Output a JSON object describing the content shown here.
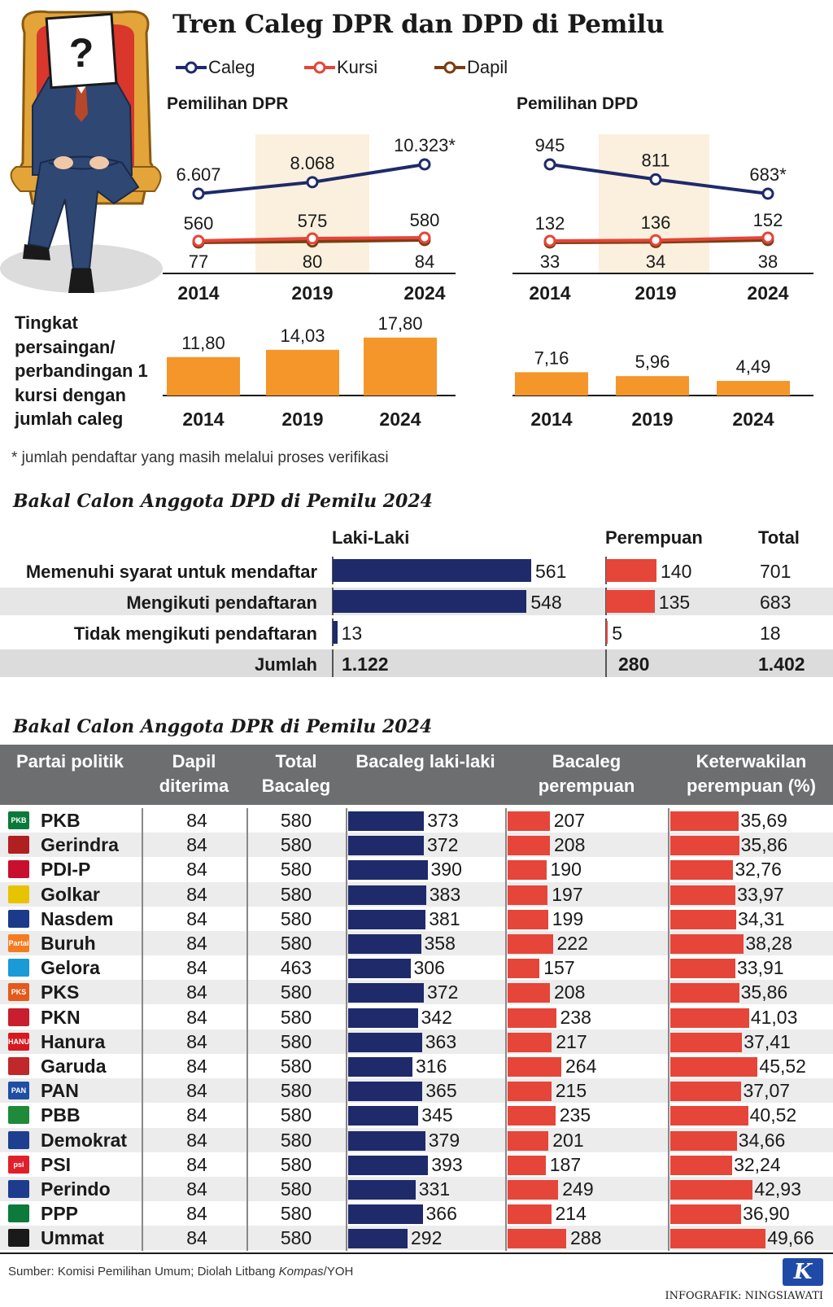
{
  "title": "Tren Caleg DPR dan DPD di Pemilu",
  "legend": [
    {
      "name": "Caleg",
      "color": "#1f2a6b"
    },
    {
      "name": "Kursi",
      "color": "#e6453a"
    },
    {
      "name": "Dapil",
      "color": "#7a3e12"
    }
  ],
  "illustration": {
    "sign_text": "?"
  },
  "competition_label": [
    "Tingkat",
    "persaingan/",
    "perbandingan 1",
    "kursi dengan",
    "jumlah caleg"
  ],
  "footnote": "* jumlah pendaftar yang masih melalui proses verifikasi",
  "chart_data": [
    {
      "type": "line",
      "title": "Pemilihan DPR",
      "categories": [
        "2014",
        "2019",
        "2024"
      ],
      "series": [
        {
          "name": "Caleg",
          "values": [
            6607,
            8068,
            10323
          ],
          "labels": [
            "6.607",
            "8.068",
            "10.323*"
          ]
        },
        {
          "name": "Kursi",
          "values": [
            560,
            575,
            580
          ],
          "labels": [
            "560",
            "575",
            "580"
          ]
        },
        {
          "name": "Dapil",
          "values": [
            77,
            80,
            84
          ],
          "labels": [
            "77",
            "80",
            "84"
          ]
        }
      ],
      "highlight_category": "2019"
    },
    {
      "type": "line",
      "title": "Pemilihan DPD",
      "categories": [
        "2014",
        "2019",
        "2024"
      ],
      "series": [
        {
          "name": "Caleg",
          "values": [
            945,
            811,
            683
          ],
          "labels": [
            "945",
            "811",
            "683*"
          ]
        },
        {
          "name": "Kursi",
          "values": [
            132,
            136,
            152
          ],
          "labels": [
            "132",
            "136",
            "152"
          ]
        },
        {
          "name": "Dapil",
          "values": [
            33,
            34,
            38
          ],
          "labels": [
            "33",
            "34",
            "38"
          ]
        }
      ],
      "highlight_category": "2019"
    },
    {
      "type": "bar",
      "title": "Tingkat persaingan DPR",
      "categories": [
        "2014",
        "2019",
        "2024"
      ],
      "values": [
        11.8,
        14.03,
        17.8
      ],
      "labels": [
        "11,80",
        "14,03",
        "17,80"
      ]
    },
    {
      "type": "bar",
      "title": "Tingkat persaingan DPD",
      "categories": [
        "2014",
        "2019",
        "2024"
      ],
      "values": [
        7.16,
        5.96,
        4.49
      ],
      "labels": [
        "7,16",
        "5,96",
        "4,49"
      ]
    },
    {
      "type": "bar",
      "title": "Bakal Calon Anggota DPD di Pemilu 2024",
      "headers": {
        "laki": "Laki-Laki",
        "perempuan": "Perempuan",
        "total": "Total"
      },
      "rows": [
        {
          "label": "Memenuhi syarat untuk mendaftar",
          "laki": 561,
          "perempuan": 140,
          "total": "701"
        },
        {
          "label": "Mengikuti pendaftaran",
          "laki": 548,
          "perempuan": 135,
          "total": "683"
        },
        {
          "label": "Tidak mengikuti pendaftaran",
          "laki": 13,
          "perempuan": 5,
          "total": "18"
        }
      ],
      "sum": {
        "label": "Jumlah",
        "laki": "1.122",
        "perempuan": "280",
        "total": "1.402"
      }
    },
    {
      "type": "table",
      "title": "Bakal Calon Anggota DPR di Pemilu 2024",
      "columns": [
        "Partai politik",
        "Dapil diterima",
        "Total Bacaleg",
        "Bacaleg laki-laki",
        "Bacaleg perempuan",
        "Keterwakilan perempuan (%)"
      ],
      "rows": [
        {
          "party": "PKB",
          "dapil": 84,
          "total": 580,
          "laki": 373,
          "perempuan": 207,
          "pct": "35,69",
          "pct_val": 35.69
        },
        {
          "party": "Gerindra",
          "dapil": 84,
          "total": 580,
          "laki": 372,
          "perempuan": 208,
          "pct": "35,86",
          "pct_val": 35.86
        },
        {
          "party": "PDI-P",
          "dapil": 84,
          "total": 580,
          "laki": 390,
          "perempuan": 190,
          "pct": "32,76",
          "pct_val": 32.76
        },
        {
          "party": "Golkar",
          "dapil": 84,
          "total": 580,
          "laki": 383,
          "perempuan": 197,
          "pct": "33,97",
          "pct_val": 33.97
        },
        {
          "party": "Nasdem",
          "dapil": 84,
          "total": 580,
          "laki": 381,
          "perempuan": 199,
          "pct": "34,31",
          "pct_val": 34.31
        },
        {
          "party": "Buruh",
          "dapil": 84,
          "total": 580,
          "laki": 358,
          "perempuan": 222,
          "pct": "38,28",
          "pct_val": 38.28
        },
        {
          "party": "Gelora",
          "dapil": 84,
          "total": 463,
          "laki": 306,
          "perempuan": 157,
          "pct": "33,91",
          "pct_val": 33.91
        },
        {
          "party": "PKS",
          "dapil": 84,
          "total": 580,
          "laki": 372,
          "perempuan": 208,
          "pct": "35,86",
          "pct_val": 35.86
        },
        {
          "party": "PKN",
          "dapil": 84,
          "total": 580,
          "laki": 342,
          "perempuan": 238,
          "pct": "41,03",
          "pct_val": 41.03
        },
        {
          "party": "Hanura",
          "dapil": 84,
          "total": 580,
          "laki": 363,
          "perempuan": 217,
          "pct": "37,41",
          "pct_val": 37.41
        },
        {
          "party": "Garuda",
          "dapil": 84,
          "total": 580,
          "laki": 316,
          "perempuan": 264,
          "pct": "45,52",
          "pct_val": 45.52
        },
        {
          "party": "PAN",
          "dapil": 84,
          "total": 580,
          "laki": 365,
          "perempuan": 215,
          "pct": "37,07",
          "pct_val": 37.07
        },
        {
          "party": "PBB",
          "dapil": 84,
          "total": 580,
          "laki": 345,
          "perempuan": 235,
          "pct": "40,52",
          "pct_val": 40.52
        },
        {
          "party": "Demokrat",
          "dapil": 84,
          "total": 580,
          "laki": 379,
          "perempuan": 201,
          "pct": "34,66",
          "pct_val": 34.66
        },
        {
          "party": "PSI",
          "dapil": 84,
          "total": 580,
          "laki": 393,
          "perempuan": 187,
          "pct": "32,24",
          "pct_val": 32.24
        },
        {
          "party": "Perindo",
          "dapil": 84,
          "total": 580,
          "laki": 331,
          "perempuan": 249,
          "pct": "42,93",
          "pct_val": 42.93
        },
        {
          "party": "PPP",
          "dapil": 84,
          "total": 580,
          "laki": 366,
          "perempuan": 214,
          "pct": "36,90",
          "pct_val": 36.9
        },
        {
          "party": "Ummat",
          "dapil": 84,
          "total": 580,
          "laki": 292,
          "perempuan": 288,
          "pct": "49,66",
          "pct_val": 49.66
        }
      ]
    }
  ],
  "party_logos": [
    {
      "text": "PKB",
      "color": "#0a7a3a"
    },
    {
      "text": "",
      "color": "#b02020"
    },
    {
      "text": "",
      "color": "#c8102e"
    },
    {
      "text": "",
      "color": "#e8c400"
    },
    {
      "text": "",
      "color": "#1b3a8a"
    },
    {
      "text": "Partai Buruh",
      "color": "#f47b20"
    },
    {
      "text": "",
      "color": "#1a9ad6"
    },
    {
      "text": "PKS",
      "color": "#e35a1c"
    },
    {
      "text": "",
      "color": "#c81e2e"
    },
    {
      "text": "HANURA",
      "color": "#d71920"
    },
    {
      "text": "",
      "color": "#c0282a"
    },
    {
      "text": "PAN",
      "color": "#1e4fa3"
    },
    {
      "text": "",
      "color": "#1f8a3a"
    },
    {
      "text": "",
      "color": "#1e3f8f"
    },
    {
      "text": "psi",
      "color": "#e0202a"
    },
    {
      "text": "",
      "color": "#1d3c8e"
    },
    {
      "text": "",
      "color": "#0b7a3b"
    },
    {
      "text": "",
      "color": "#1a1a1a"
    }
  ],
  "source": {
    "prefix": "Sumber: Komisi Pemilihan Umum; Diolah Litbang ",
    "italic": "Kompas",
    "suffix": "/YOH"
  },
  "credit": "INFOGRAFIK: NINGSIAWATI",
  "logo_letter": "K"
}
